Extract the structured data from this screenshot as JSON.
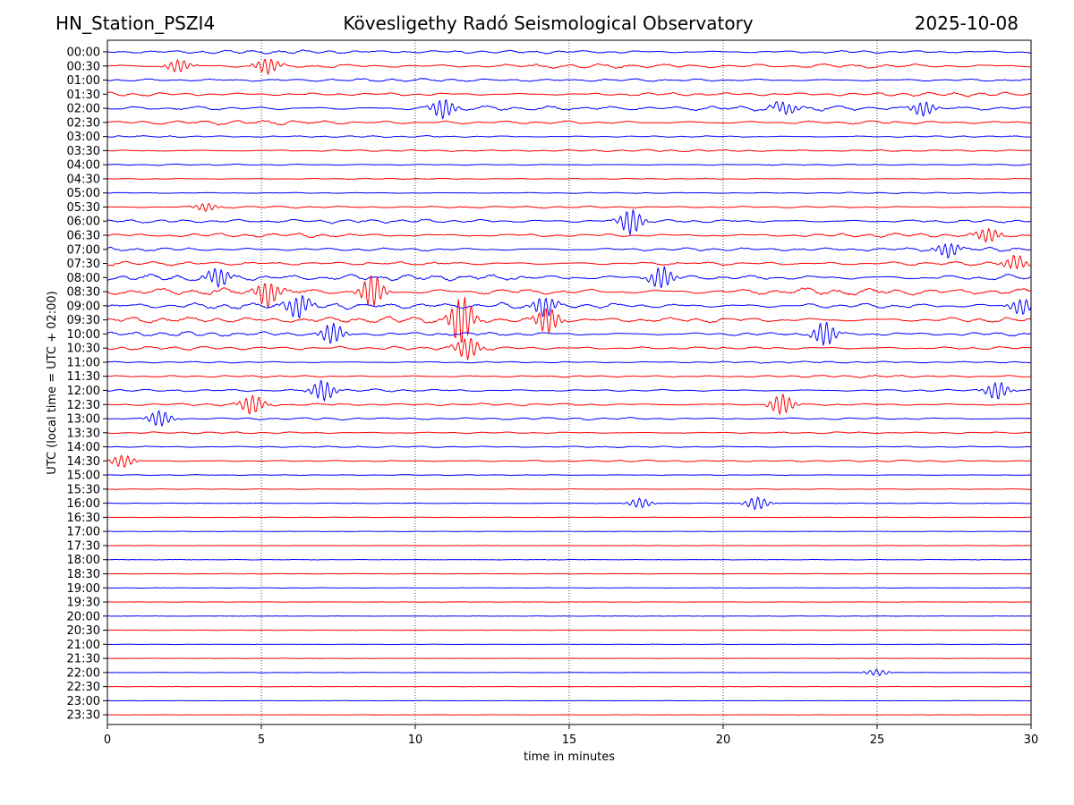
{
  "header": {
    "station": "HN_Station_PSZI4",
    "observatory": "Kövesligethy Radó Seismological Observatory",
    "date": "2025-10-08"
  },
  "chart_data": {
    "type": "line",
    "title": "Kövesligethy Radó Seismological Observatory",
    "xlabel": "time in minutes",
    "ylabel": "UTC (local time = UTC + 02:00)",
    "xlim": [
      0,
      30
    ],
    "x_ticks": [
      "0",
      "5",
      "10",
      "15",
      "20",
      "25",
      "30"
    ],
    "grid": "vertical dotted at 5-minute intervals",
    "row_labels": [
      "00:00",
      "00:30",
      "01:00",
      "01:30",
      "02:00",
      "02:30",
      "03:00",
      "03:30",
      "04:00",
      "04:30",
      "05:00",
      "05:30",
      "06:00",
      "06:30",
      "07:00",
      "07:30",
      "08:00",
      "08:30",
      "09:00",
      "09:30",
      "10:00",
      "10:30",
      "11:00",
      "11:30",
      "12:00",
      "12:30",
      "13:00",
      "13:30",
      "14:00",
      "14:30",
      "15:00",
      "15:30",
      "16:00",
      "16:30",
      "17:00",
      "17:30",
      "18:00",
      "18:30",
      "19:00",
      "19:30",
      "20:00",
      "20:30",
      "21:00",
      "21:30",
      "22:00",
      "22:30",
      "23:00",
      "23:30"
    ],
    "colors": {
      "even_rows": "#0000ff",
      "odd_rows": "#ff0000"
    },
    "activity_level": [
      0.45,
      0.55,
      0.4,
      0.5,
      0.65,
      0.55,
      0.25,
      0.25,
      0.18,
      0.12,
      0.15,
      0.25,
      0.5,
      0.55,
      0.5,
      0.55,
      0.85,
      0.95,
      0.85,
      0.8,
      0.55,
      0.5,
      0.25,
      0.3,
      0.35,
      0.35,
      0.3,
      0.25,
      0.2,
      0.22,
      0.1,
      0.08,
      0.08,
      0.06,
      0.05,
      0.05,
      0.06,
      0.07,
      0.05,
      0.04,
      0.04,
      0.04,
      0.05,
      0.04,
      0.05,
      0.04,
      0.03,
      0.03
    ],
    "events": [
      {
        "row": "00:30",
        "minute": 5.2,
        "amp": 1.0
      },
      {
        "row": "00:30",
        "minute": 2.3,
        "amp": 0.8
      },
      {
        "row": "02:00",
        "minute": 10.9,
        "amp": 1.2
      },
      {
        "row": "02:00",
        "minute": 22.0,
        "amp": 0.8
      },
      {
        "row": "02:00",
        "minute": 26.5,
        "amp": 0.9
      },
      {
        "row": "05:30",
        "minute": 3.2,
        "amp": 0.5
      },
      {
        "row": "06:00",
        "minute": 17.0,
        "amp": 1.6
      },
      {
        "row": "06:30",
        "minute": 28.6,
        "amp": 0.9
      },
      {
        "row": "07:00",
        "minute": 27.3,
        "amp": 0.9
      },
      {
        "row": "07:30",
        "minute": 29.5,
        "amp": 0.9
      },
      {
        "row": "08:00",
        "minute": 3.6,
        "amp": 1.2
      },
      {
        "row": "08:00",
        "minute": 18.0,
        "amp": 1.4
      },
      {
        "row": "08:30",
        "minute": 5.2,
        "amp": 1.6
      },
      {
        "row": "08:30",
        "minute": 8.6,
        "amp": 2.0
      },
      {
        "row": "09:00",
        "minute": 6.2,
        "amp": 1.4
      },
      {
        "row": "09:00",
        "minute": 14.2,
        "amp": 1.3
      },
      {
        "row": "09:00",
        "minute": 29.7,
        "amp": 1.0
      },
      {
        "row": "09:30",
        "minute": 11.5,
        "amp": 3.0
      },
      {
        "row": "09:30",
        "minute": 14.3,
        "amp": 1.6
      },
      {
        "row": "10:00",
        "minute": 7.3,
        "amp": 1.3
      },
      {
        "row": "10:00",
        "minute": 23.3,
        "amp": 1.5
      },
      {
        "row": "10:30",
        "minute": 11.7,
        "amp": 1.4
      },
      {
        "row": "12:00",
        "minute": 7.0,
        "amp": 1.3
      },
      {
        "row": "12:00",
        "minute": 28.9,
        "amp": 1.1
      },
      {
        "row": "12:30",
        "minute": 4.7,
        "amp": 1.2
      },
      {
        "row": "12:30",
        "minute": 21.9,
        "amp": 1.3
      },
      {
        "row": "13:00",
        "minute": 1.7,
        "amp": 1.0
      },
      {
        "row": "14:30",
        "minute": 0.5,
        "amp": 0.8
      },
      {
        "row": "16:00",
        "minute": 17.3,
        "amp": 0.6
      },
      {
        "row": "16:00",
        "minute": 21.1,
        "amp": 0.8
      },
      {
        "row": "22:00",
        "minute": 25.0,
        "amp": 0.4
      }
    ]
  }
}
